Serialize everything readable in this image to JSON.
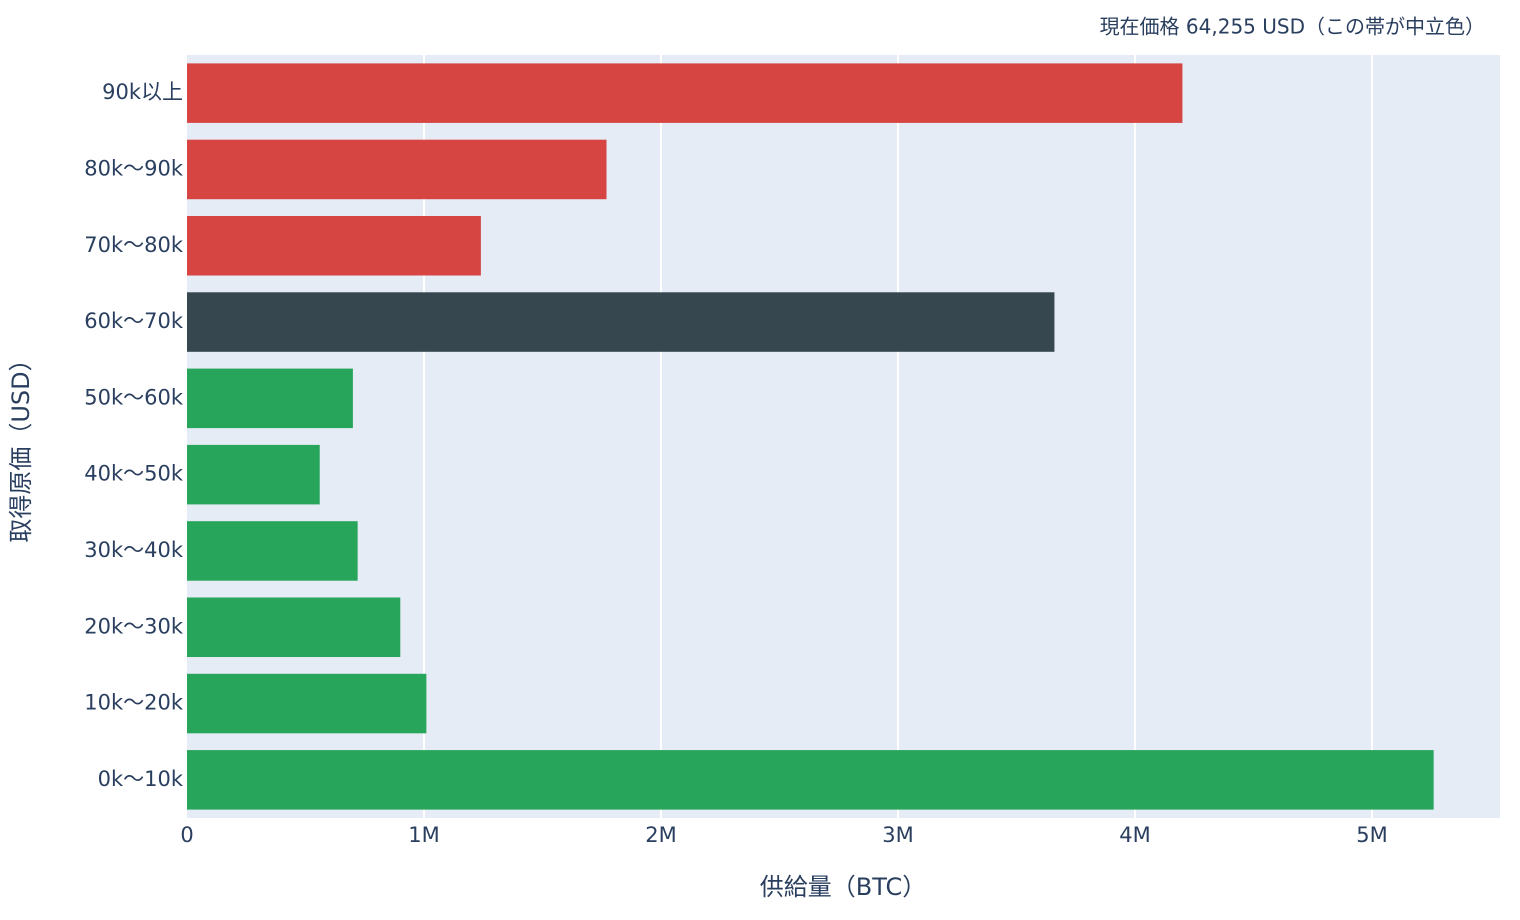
{
  "chart_data": {
    "type": "barh",
    "annotation": "現在価格 64,255 USD（この帯が中立色）",
    "xlabel": "供給量（BTC）",
    "ylabel": "取得原価（USD）",
    "categories": [
      "0k〜10k",
      "10k〜20k",
      "20k〜30k",
      "30k〜40k",
      "40k〜50k",
      "50k〜60k",
      "60k〜70k",
      "70k〜80k",
      "80k〜90k",
      "90k以上"
    ],
    "values": [
      5260000,
      1010000,
      900000,
      720000,
      560000,
      700000,
      3660000,
      1240000,
      1770000,
      4200000
    ],
    "colors": [
      "#27a55a",
      "#27a55a",
      "#27a55a",
      "#27a55a",
      "#27a55a",
      "#27a55a",
      "#37474f",
      "#d64541",
      "#d64541",
      "#d64541"
    ],
    "xlim": [
      0,
      5540000
    ],
    "xticks": [
      0,
      {
        "value": 1000000,
        "label": "1M"
      },
      {
        "value": 2000000,
        "label": "2M"
      },
      {
        "value": 3000000,
        "label": "3M"
      },
      {
        "value": 4000000,
        "label": "4M"
      },
      {
        "value": 5000000,
        "label": "5M"
      }
    ],
    "grid": true
  }
}
